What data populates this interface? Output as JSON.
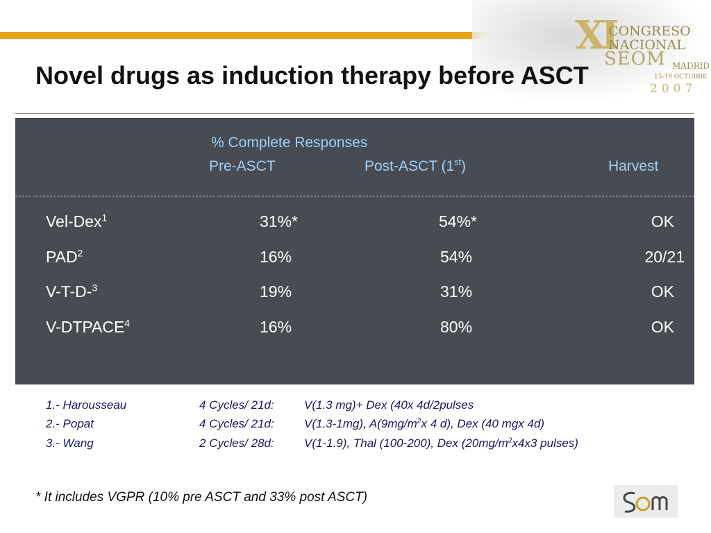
{
  "title": "Novel drugs as induction therapy before ASCT",
  "logo": {
    "mark": "XI",
    "line1": "CONGRESO",
    "line2": "NACIONAL",
    "org": "SEOM",
    "city": "MADRID",
    "date": "15-19 OCTUBRE",
    "year": "2007"
  },
  "table": {
    "group_header": "% Complete Responses",
    "col_pre": "Pre-ASCT",
    "col_post": "Post-ASCT (1",
    "col_post_sup": "st",
    "col_post_end": ")",
    "col_harvest": "Harvest",
    "rows": [
      {
        "name": "Vel-Dex",
        "sup": "1",
        "pre": "31%*",
        "post": "54%*",
        "harvest": "OK"
      },
      {
        "name": "PAD",
        "sup": "2",
        "pre": "16%",
        "post": "54%",
        "harvest": "20/21"
      },
      {
        "name": "V-T-D-",
        "sup": "3",
        "pre": "19%",
        "post": "31%",
        "harvest": "OK"
      },
      {
        "name": "V-DTPACE",
        "sup": "4",
        "pre": "16%",
        "post": "80%",
        "harvest": "OK"
      }
    ]
  },
  "references": [
    {
      "author": "1.- Harousseau",
      "cycles": "4 Cycles/ 21d:",
      "regimen": "V(1.3 mg)+ Dex (40x 4d/2pulses"
    },
    {
      "author": "2.- Popat",
      "cycles": "4 Cycles/ 21d:",
      "regimen_a": "V(1.3-1mg), A(9mg/m",
      "regimen_sup": "2",
      "regimen_b": "x 4 d), Dex (40 mgx 4d)"
    },
    {
      "author": "3.- Wang",
      "cycles": "2 Cycles/ 28d:",
      "regimen_a": "V(1-1.9), Thal (100-200), Dex (20mg/m",
      "regimen_sup": "2",
      "regimen_b": "x4x3 pulses)"
    }
  ],
  "footnote": "* It includes VGPR (10% pre ASCT and 33% post ASCT)",
  "colors": {
    "accent_bar": "#e8a419",
    "panel_bg": "#474b52",
    "header_text": "#9fd0f6",
    "reference_text": "#1a1560"
  }
}
